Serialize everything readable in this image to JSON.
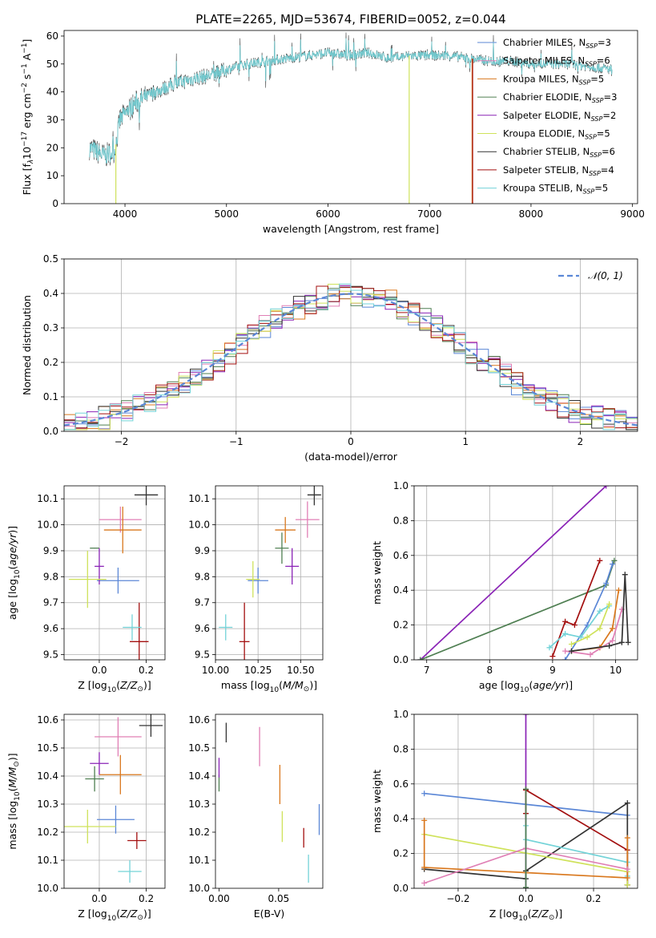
{
  "figure_title": "PLATE=2265, MJD=53674, FIBERID=0052, z=0.044",
  "colors": {
    "Chabrier MILES": "#5b87d6",
    "Salpeter MILES": "#e07fb5",
    "Kroupa MILES": "#d9781e",
    "Chabrier ELODIE": "#4f7f52",
    "Salpeter ELODIE": "#8a23b6",
    "Kroupa ELODIE": "#cfe25a",
    "Chabrier STELIB": "#333333",
    "Salpeter STELIB": "#a30f0f",
    "Kroupa STELIB": "#73d3d8"
  },
  "chart_data": [
    {
      "id": "spectrum",
      "type": "line",
      "title": "PLATE=2265, MJD=53674, FIBERID=0052, z=0.044",
      "xlabel": "wavelength [Angstrom, rest frame]",
      "ylabel": "Flux [f_λ10^-17 erg cm^-2 s^-1 A^-1]",
      "xlim": [
        3400,
        9050
      ],
      "ylim": [
        0,
        62
      ],
      "xticks": [
        4000,
        5000,
        6000,
        7000,
        8000,
        9000
      ],
      "yticks": [
        0,
        10,
        20,
        30,
        40,
        50,
        60
      ],
      "grid": false,
      "legend_position": "right",
      "legend": [
        {
          "name": "Chabrier MILES",
          "nssp": "3"
        },
        {
          "name": "Salpeter MILES",
          "nssp": "6"
        },
        {
          "name": "Kroupa MILES",
          "nssp": "5"
        },
        {
          "name": "Chabrier ELODIE",
          "nssp": "3"
        },
        {
          "name": "Salpeter ELODIE",
          "nssp": "2"
        },
        {
          "name": "Kroupa ELODIE",
          "nssp": "5"
        },
        {
          "name": "Chabrier STELIB",
          "nssp": "6"
        },
        {
          "name": "Salpeter STELIB",
          "nssp": "4"
        },
        {
          "name": "Kroupa STELIB",
          "nssp": "5"
        }
      ],
      "continuum": [
        [
          3650,
          20
        ],
        [
          3800,
          17
        ],
        [
          3900,
          19
        ],
        [
          3950,
          30
        ],
        [
          4100,
          36
        ],
        [
          4300,
          40
        ],
        [
          4500,
          43
        ],
        [
          4700,
          45
        ],
        [
          4860,
          46
        ],
        [
          5000,
          48
        ],
        [
          5200,
          50
        ],
        [
          5400,
          51
        ],
        [
          5600,
          52
        ],
        [
          5800,
          53
        ],
        [
          6000,
          54
        ],
        [
          6200,
          53
        ],
        [
          6400,
          54
        ],
        [
          6600,
          52
        ],
        [
          6800,
          53
        ],
        [
          7000,
          53
        ],
        [
          7200,
          53
        ],
        [
          7400,
          52
        ],
        [
          7600,
          51
        ],
        [
          7800,
          51
        ],
        [
          8000,
          50
        ],
        [
          8200,
          50
        ],
        [
          8400,
          50
        ],
        [
          8600,
          49
        ],
        [
          8800,
          48
        ]
      ],
      "model_cutoffs": [
        {
          "name": "Kroupa ELODIE",
          "x": 3910
        },
        {
          "name": "Kroupa ELODIE",
          "x": 6800
        },
        {
          "name": "Kroupa MILES",
          "x": 7420
        },
        {
          "name": "Salpeter STELIB",
          "x": 7425
        }
      ],
      "noise_seed": 7
    },
    {
      "id": "residuals",
      "type": "bar",
      "xlabel": "(data-model)/error",
      "ylabel": "Normed distribution",
      "xlim": [
        -2.5,
        2.5
      ],
      "ylim": [
        0,
        0.5
      ],
      "xticks": [
        -2,
        -1,
        0,
        1,
        2
      ],
      "yticks": [
        0.0,
        0.1,
        0.2,
        0.3,
        0.4,
        0.5
      ],
      "grid": true,
      "legend_position": "top-right",
      "reference_curve": {
        "name": "𝒩(0, 1)",
        "mean": 0,
        "sigma": 1
      },
      "bin_width": 0.1,
      "series_jitter": 0.035,
      "series": [
        "Chabrier MILES",
        "Salpeter MILES",
        "Kroupa MILES",
        "Chabrier ELODIE",
        "Salpeter ELODIE",
        "Kroupa ELODIE",
        "Chabrier STELIB",
        "Salpeter STELIB",
        "Kroupa STELIB"
      ]
    },
    {
      "id": "age-vs-Z",
      "type": "scatter",
      "xlabel": "Z [log10(Z/Z⊙)]",
      "ylabel": "age  [log10(age/yr)]",
      "xlim": [
        -0.15,
        0.28
      ],
      "ylim": [
        9.48,
        10.15
      ],
      "xticks": [
        0.0,
        0.2
      ],
      "yticks": [
        9.5,
        9.6,
        9.7,
        9.8,
        9.9,
        10.0,
        10.1
      ],
      "grid": true,
      "points": [
        {
          "series": "Chabrier MILES",
          "x": 0.08,
          "xerr": 0.09,
          "y": 9.785,
          "yerr": 0.05
        },
        {
          "series": "Salpeter MILES",
          "x": 0.09,
          "xerr": 0.09,
          "y": 10.02,
          "yerr": 0.05
        },
        {
          "series": "Kroupa MILES",
          "x": 0.1,
          "xerr": 0.08,
          "y": 9.98,
          "yerr": 0.09
        },
        {
          "series": "Chabrier ELODIE",
          "x": -0.02,
          "xerr": 0.02,
          "y": 9.91,
          "yerr": 0.001
        },
        {
          "series": "Salpeter ELODIE",
          "x": 0.0,
          "xerr": 0.02,
          "y": 9.84,
          "yerr": 0.07
        },
        {
          "series": "Kroupa ELODIE",
          "x": -0.05,
          "xerr": 0.08,
          "y": 9.79,
          "yerr": 0.11
        },
        {
          "series": "Chabrier STELIB",
          "x": 0.2,
          "xerr": 0.05,
          "y": 10.115,
          "yerr": 0.04
        },
        {
          "series": "Salpeter STELIB",
          "x": 0.17,
          "xerr": 0.04,
          "y": 9.55,
          "yerr": 0.15
        },
        {
          "series": "Kroupa STELIB",
          "x": 0.14,
          "xerr": 0.04,
          "y": 9.605,
          "yerr": 0.05
        }
      ]
    },
    {
      "id": "age-vs-mass",
      "type": "scatter",
      "xlabel": "mass [log10(M/M⊙)]",
      "ylabel": "",
      "xlim": [
        10.0,
        10.63
      ],
      "ylim": [
        9.48,
        10.15
      ],
      "xticks": [
        10.0,
        10.25,
        10.5
      ],
      "xtick_labels": [
        "10.00",
        "10.25",
        "10.50"
      ],
      "yticks": [
        9.5,
        9.6,
        9.7,
        9.8,
        9.9,
        10.0,
        10.1
      ],
      "grid": true,
      "points": [
        {
          "series": "Chabrier MILES",
          "x": 10.25,
          "xerr": 0.06,
          "y": 9.785,
          "yerr": 0.05
        },
        {
          "series": "Salpeter MILES",
          "x": 10.54,
          "xerr": 0.07,
          "y": 10.02,
          "yerr": 0.07
        },
        {
          "series": "Kroupa MILES",
          "x": 10.41,
          "xerr": 0.06,
          "y": 9.98,
          "yerr": 0.05
        },
        {
          "series": "Chabrier ELODIE",
          "x": 10.39,
          "xerr": 0.04,
          "y": 9.91,
          "yerr": 0.06
        },
        {
          "series": "Salpeter ELODIE",
          "x": 10.45,
          "xerr": 0.04,
          "y": 9.84,
          "yerr": 0.07
        },
        {
          "series": "Kroupa ELODIE",
          "x": 10.22,
          "xerr": 0.04,
          "y": 9.79,
          "yerr": 0.07
        },
        {
          "series": "Chabrier STELIB",
          "x": 10.58,
          "xerr": 0.04,
          "y": 10.115,
          "yerr": 0.04
        },
        {
          "series": "Salpeter STELIB",
          "x": 10.17,
          "xerr": 0.03,
          "y": 9.55,
          "yerr": 0.15
        },
        {
          "series": "Kroupa STELIB",
          "x": 10.06,
          "xerr": 0.04,
          "y": 9.605,
          "yerr": 0.05
        }
      ]
    },
    {
      "id": "massweight-vs-age",
      "type": "line",
      "xlabel": "age  [log10(age/yr)]",
      "ylabel": "mass weight",
      "xlim": [
        6.8,
        10.35
      ],
      "ylim": [
        0,
        1.0
      ],
      "xticks": [
        7,
        8,
        9,
        10
      ],
      "yticks": [
        0.0,
        0.2,
        0.4,
        0.6,
        0.8,
        1.0
      ],
      "grid": true,
      "series": [
        {
          "name": "Salpeter ELODIE",
          "points": [
            [
              6.9,
              0.0
            ],
            [
              9.85,
              1.0
            ]
          ]
        },
        {
          "name": "Chabrier ELODIE",
          "points": [
            [
              6.9,
              0.0
            ],
            [
              9.85,
              0.43
            ],
            [
              9.98,
              0.57
            ]
          ]
        },
        {
          "name": "Salpeter STELIB",
          "points": [
            [
              9.0,
              0.02
            ],
            [
              9.2,
              0.22
            ],
            [
              9.35,
              0.2
            ],
            [
              9.75,
              0.57
            ]
          ]
        },
        {
          "name": "Chabrier MILES",
          "points": [
            [
              9.2,
              0.0
            ],
            [
              9.55,
              0.2
            ],
            [
              9.85,
              0.44
            ],
            [
              9.95,
              0.55
            ]
          ]
        },
        {
          "name": "Kroupa STELIB",
          "points": [
            [
              8.95,
              0.07
            ],
            [
              9.2,
              0.15
            ],
            [
              9.45,
              0.13
            ],
            [
              9.75,
              0.28
            ],
            [
              9.9,
              0.31
            ]
          ]
        },
        {
          "name": "Kroupa ELODIE",
          "points": [
            [
              9.3,
              0.09
            ],
            [
              9.55,
              0.13
            ],
            [
              9.75,
              0.18
            ],
            [
              9.9,
              0.32
            ]
          ]
        },
        {
          "name": "Kroupa MILES",
          "points": [
            [
              9.3,
              0.05
            ],
            [
              9.75,
              0.07
            ],
            [
              9.95,
              0.18
            ],
            [
              10.05,
              0.4
            ]
          ]
        },
        {
          "name": "Salpeter MILES",
          "points": [
            [
              9.2,
              0.05
            ],
            [
              9.6,
              0.03
            ],
            [
              9.95,
              0.11
            ],
            [
              10.1,
              0.29
            ]
          ]
        },
        {
          "name": "Chabrier STELIB",
          "points": [
            [
              9.3,
              0.05
            ],
            [
              9.9,
              0.08
            ],
            [
              10.1,
              0.1
            ],
            [
              10.15,
              0.49
            ],
            [
              10.2,
              0.1
            ]
          ]
        }
      ]
    },
    {
      "id": "mass-vs-Z",
      "type": "scatter",
      "xlabel": "Z [log10(Z/Z⊙)]",
      "ylabel": "mass [log10(M/M⊙)]",
      "xlim": [
        -0.15,
        0.28
      ],
      "ylim": [
        10.0,
        10.62
      ],
      "xticks": [
        0.0,
        0.2
      ],
      "yticks": [
        10.0,
        10.1,
        10.2,
        10.3,
        10.4,
        10.5,
        10.6
      ],
      "grid": true,
      "points": [
        {
          "series": "Chabrier MILES",
          "x": 0.07,
          "xerr": 0.08,
          "y": 10.245,
          "yerr": 0.05
        },
        {
          "series": "Salpeter MILES",
          "x": 0.08,
          "xerr": 0.1,
          "y": 10.54,
          "yerr": 0.07
        },
        {
          "series": "Kroupa MILES",
          "x": 0.09,
          "xerr": 0.09,
          "y": 10.405,
          "yerr": 0.07
        },
        {
          "series": "Chabrier ELODIE",
          "x": -0.02,
          "xerr": 0.04,
          "y": 10.39,
          "yerr": 0.045
        },
        {
          "series": "Salpeter ELODIE",
          "x": 0.0,
          "xerr": 0.04,
          "y": 10.445,
          "yerr": 0.04
        },
        {
          "series": "Kroupa ELODIE",
          "x": -0.05,
          "xerr": 0.12,
          "y": 10.22,
          "yerr": 0.06
        },
        {
          "series": "Chabrier STELIB",
          "x": 0.22,
          "xerr": 0.05,
          "y": 10.58,
          "yerr": 0.04
        },
        {
          "series": "Salpeter STELIB",
          "x": 0.16,
          "xerr": 0.04,
          "y": 10.17,
          "yerr": 0.03
        },
        {
          "series": "Kroupa STELIB",
          "x": 0.13,
          "xerr": 0.05,
          "y": 10.06,
          "yerr": 0.04
        }
      ]
    },
    {
      "id": "mass-vs-EBV",
      "type": "scatter",
      "xlabel": "E(B-V)",
      "ylabel": "",
      "xlim": [
        -0.003,
        0.087
      ],
      "ylim": [
        10.0,
        10.62
      ],
      "xticks": [
        0.0,
        0.05
      ],
      "xtick_labels": [
        "0.00",
        "0.05"
      ],
      "yticks": [
        10.0,
        10.1,
        10.2,
        10.3,
        10.4,
        10.5,
        10.6
      ],
      "grid": false,
      "points": [
        {
          "series": "Chabrier MILES",
          "x": 0.084,
          "xerr": 0,
          "y": 10.245,
          "yerr": 0.055
        },
        {
          "series": "Salpeter MILES",
          "x": 0.034,
          "xerr": 0,
          "y": 10.505,
          "yerr": 0.07
        },
        {
          "series": "Kroupa MILES",
          "x": 0.051,
          "xerr": 0,
          "y": 10.37,
          "yerr": 0.07
        },
        {
          "series": "Chabrier ELODIE",
          "x": 0.0,
          "xerr": 0,
          "y": 10.375,
          "yerr": 0.03
        },
        {
          "series": "Salpeter ELODIE",
          "x": 0.0,
          "xerr": 0,
          "y": 10.43,
          "yerr": 0.035
        },
        {
          "series": "Kroupa ELODIE",
          "x": 0.053,
          "xerr": 0,
          "y": 10.22,
          "yerr": 0.055
        },
        {
          "series": "Chabrier STELIB",
          "x": 0.006,
          "xerr": 0,
          "y": 10.555,
          "yerr": 0.035
        },
        {
          "series": "Salpeter STELIB",
          "x": 0.071,
          "xerr": 0,
          "y": 10.18,
          "yerr": 0.035
        },
        {
          "series": "Kroupa STELIB",
          "x": 0.075,
          "xerr": 0,
          "y": 10.07,
          "yerr": 0.05
        }
      ]
    },
    {
      "id": "massweight-vs-Z",
      "type": "line",
      "xlabel": "Z [log10(Z/Z⊙)]",
      "ylabel": "mass weight",
      "xlim": [
        -0.33,
        0.33
      ],
      "ylim": [
        0,
        1.0
      ],
      "xticks": [
        -0.2,
        0.0,
        0.2
      ],
      "yticks": [
        0.0,
        0.2,
        0.4,
        0.6,
        0.8,
        1.0
      ],
      "grid": true,
      "series": [
        {
          "name": "Salpeter ELODIE",
          "points": [
            [
              0.0,
              1.0
            ],
            [
              0.0,
              0.0
            ]
          ]
        },
        {
          "name": "Chabrier MILES",
          "points": [
            [
              -0.3,
              0.545
            ],
            [
              0.3,
              0.42
            ]
          ]
        },
        {
          "name": "Salpeter STELIB",
          "points": [
            [
              0.0,
              0.43
            ],
            [
              0.0,
              0.565
            ],
            [
              0.3,
              0.22
            ],
            [
              0.3,
              0.02
            ]
          ]
        },
        {
          "name": "Chabrier STELIB",
          "points": [
            [
              -0.3,
              0.11
            ],
            [
              0.0,
              0.055
            ],
            [
              0.0,
              0.1
            ],
            [
              0.3,
              0.49
            ],
            [
              0.3,
              0.02
            ]
          ]
        },
        {
          "name": "Kroupa STELIB",
          "points": [
            [
              0.0,
              0.36
            ],
            [
              0.0,
              0.28
            ],
            [
              0.3,
              0.15
            ],
            [
              0.3,
              0.07
            ]
          ]
        },
        {
          "name": "Kroupa ELODIE",
          "points": [
            [
              -0.3,
              0.31
            ],
            [
              0.3,
              0.095
            ],
            [
              0.3,
              0.02
            ]
          ]
        },
        {
          "name": "Kroupa MILES",
          "points": [
            [
              -0.3,
              0.39
            ],
            [
              -0.3,
              0.12
            ],
            [
              0.3,
              0.06
            ],
            [
              0.3,
              0.29
            ]
          ]
        },
        {
          "name": "Salpeter MILES",
          "points": [
            [
              -0.3,
              0.03
            ],
            [
              0.0,
              0.23
            ],
            [
              0.3,
              0.11
            ]
          ]
        },
        {
          "name": "Chabrier ELODIE",
          "points": [
            [
              0.0,
              0.005
            ],
            [
              0.0,
              0.57
            ]
          ]
        }
      ]
    }
  ]
}
